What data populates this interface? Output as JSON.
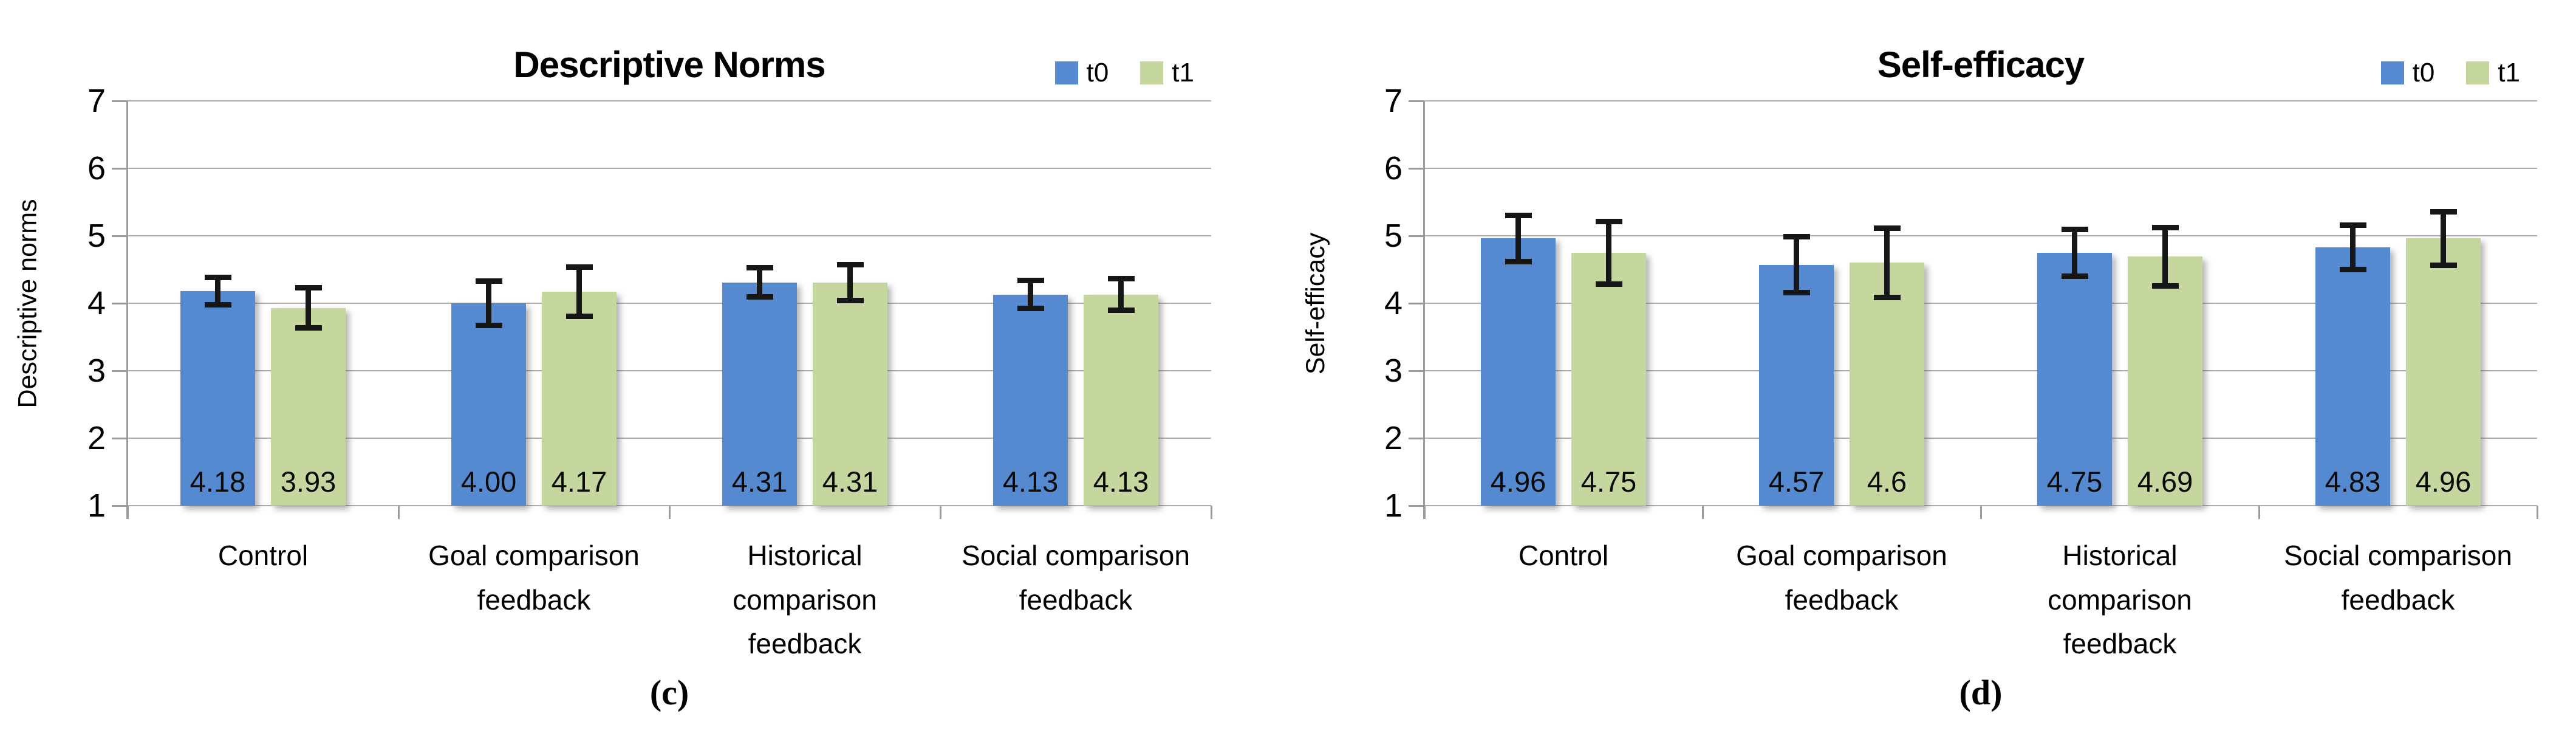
{
  "colors": {
    "t0": "#5589D0",
    "t1": "#C5D79E",
    "grid": "#ACACAC",
    "axis": "#9B9B9B",
    "error_bar": "#161616"
  },
  "chart_data": [
    {
      "type": "bar",
      "panel_label": "(c)",
      "title": "Descriptive Norms",
      "ylabel": "Descriptive norms",
      "xlabel": "",
      "ylim": [
        1,
        7
      ],
      "yticks": [
        1,
        2,
        3,
        4,
        5,
        6,
        7
      ],
      "grid": true,
      "legend_position": "top-right",
      "legend_entries": [
        "t0",
        "t1"
      ],
      "categories": [
        "Control",
        "Goal comparison feedback",
        "Historical comparison feedback",
        "Social comparison feedback"
      ],
      "series": [
        {
          "name": "t0",
          "color_key": "t0",
          "values": [
            4.18,
            4.0,
            4.31,
            4.13
          ],
          "value_labels": [
            "4.18",
            "4.00",
            "4.31",
            "4.13"
          ],
          "errors": [
            0.21,
            0.33,
            0.22,
            0.21
          ]
        },
        {
          "name": "t1",
          "color_key": "t1",
          "values": [
            3.93,
            4.17,
            4.31,
            4.13
          ],
          "value_labels": [
            "3.93",
            "4.17",
            "4.31",
            "4.13"
          ],
          "errors": [
            0.3,
            0.37,
            0.27,
            0.24
          ]
        }
      ]
    },
    {
      "type": "bar",
      "panel_label": "(d)",
      "title": "Self-efficacy",
      "ylabel": "Self-efficacy",
      "xlabel": "",
      "ylim": [
        1,
        7
      ],
      "yticks": [
        1,
        2,
        3,
        4,
        5,
        6,
        7
      ],
      "grid": true,
      "legend_position": "top-right",
      "legend_entries": [
        "t0",
        "t1"
      ],
      "categories": [
        "Control",
        "Goal comparison feedback",
        "Historical comparison feedback",
        "Social comparison feedback"
      ],
      "series": [
        {
          "name": "t0",
          "color_key": "t0",
          "values": [
            4.96,
            4.57,
            4.75,
            4.83
          ],
          "value_labels": [
            "4.96",
            "4.57",
            "4.75",
            "4.83"
          ],
          "errors": [
            0.35,
            0.42,
            0.35,
            0.33
          ]
        },
        {
          "name": "t1",
          "color_key": "t1",
          "values": [
            4.75,
            4.6,
            4.69,
            4.96
          ],
          "value_labels": [
            "4.75",
            "4.6",
            "4.69",
            "4.96"
          ],
          "errors": [
            0.47,
            0.52,
            0.44,
            0.4
          ]
        }
      ]
    }
  ]
}
